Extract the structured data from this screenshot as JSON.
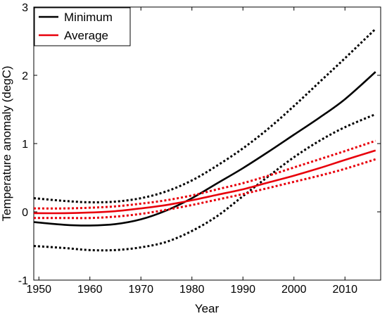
{
  "chart_data": {
    "type": "line",
    "title": "",
    "xlabel": "Year",
    "ylabel": "Temperature anomaly (degC)",
    "xlim": [
      1949,
      2017
    ],
    "ylim": [
      -1,
      3
    ],
    "x_ticks": [
      1950,
      1960,
      1970,
      1980,
      1990,
      2000,
      2010
    ],
    "y_ticks": [
      -1,
      0,
      1,
      2,
      3
    ],
    "grid": false,
    "legend_position": "top-left",
    "legend": [
      "Minimum",
      "Average"
    ],
    "series": [
      {
        "name": "Minimum",
        "color": "#000000",
        "style": "solid",
        "x": [
          1949,
          1955,
          1960,
          1965,
          1970,
          1975,
          1980,
          1985,
          1990,
          1995,
          2000,
          2005,
          2010,
          2016
        ],
        "y": [
          -0.15,
          -0.19,
          -0.2,
          -0.18,
          -0.11,
          0.02,
          0.2,
          0.42,
          0.64,
          0.88,
          1.13,
          1.38,
          1.65,
          2.05
        ]
      },
      {
        "color": "#000000",
        "style": "dotted",
        "x": [
          1949,
          1955,
          1960,
          1965,
          1970,
          1975,
          1980,
          1985,
          1990,
          1995,
          2000,
          2005,
          2010,
          2016
        ],
        "y": [
          0.2,
          0.16,
          0.14,
          0.15,
          0.2,
          0.3,
          0.46,
          0.68,
          0.93,
          1.22,
          1.55,
          1.9,
          2.25,
          2.68
        ]
      },
      {
        "color": "#000000",
        "style": "dotted",
        "x": [
          1949,
          1955,
          1960,
          1965,
          1970,
          1975,
          1980,
          1985,
          1990,
          1995,
          2000,
          2005,
          2010,
          2016
        ],
        "y": [
          -0.5,
          -0.53,
          -0.56,
          -0.56,
          -0.52,
          -0.44,
          -0.28,
          -0.06,
          0.23,
          0.52,
          0.8,
          1.04,
          1.24,
          1.43
        ]
      },
      {
        "name": "Average",
        "color": "#e8000b",
        "style": "solid",
        "x": [
          1949,
          1955,
          1960,
          1965,
          1970,
          1975,
          1980,
          1985,
          1990,
          1995,
          2000,
          2005,
          2010,
          2016
        ],
        "y": [
          -0.02,
          -0.02,
          -0.01,
          0.01,
          0.05,
          0.1,
          0.17,
          0.25,
          0.33,
          0.43,
          0.53,
          0.64,
          0.76,
          0.9
        ]
      },
      {
        "color": "#e8000b",
        "style": "dotted",
        "x": [
          1949,
          1955,
          1960,
          1965,
          1970,
          1975,
          1980,
          1985,
          1990,
          1995,
          2000,
          2005,
          2010,
          2016
        ],
        "y": [
          0.05,
          0.05,
          0.06,
          0.08,
          0.12,
          0.17,
          0.24,
          0.33,
          0.42,
          0.53,
          0.65,
          0.77,
          0.89,
          1.04
        ]
      },
      {
        "color": "#e8000b",
        "style": "dotted",
        "x": [
          1949,
          1955,
          1960,
          1965,
          1970,
          1975,
          1980,
          1985,
          1990,
          1995,
          2000,
          2005,
          2010,
          2016
        ],
        "y": [
          -0.09,
          -0.09,
          -0.09,
          -0.07,
          -0.03,
          0.03,
          0.1,
          0.18,
          0.26,
          0.35,
          0.44,
          0.53,
          0.63,
          0.77
        ]
      }
    ]
  }
}
